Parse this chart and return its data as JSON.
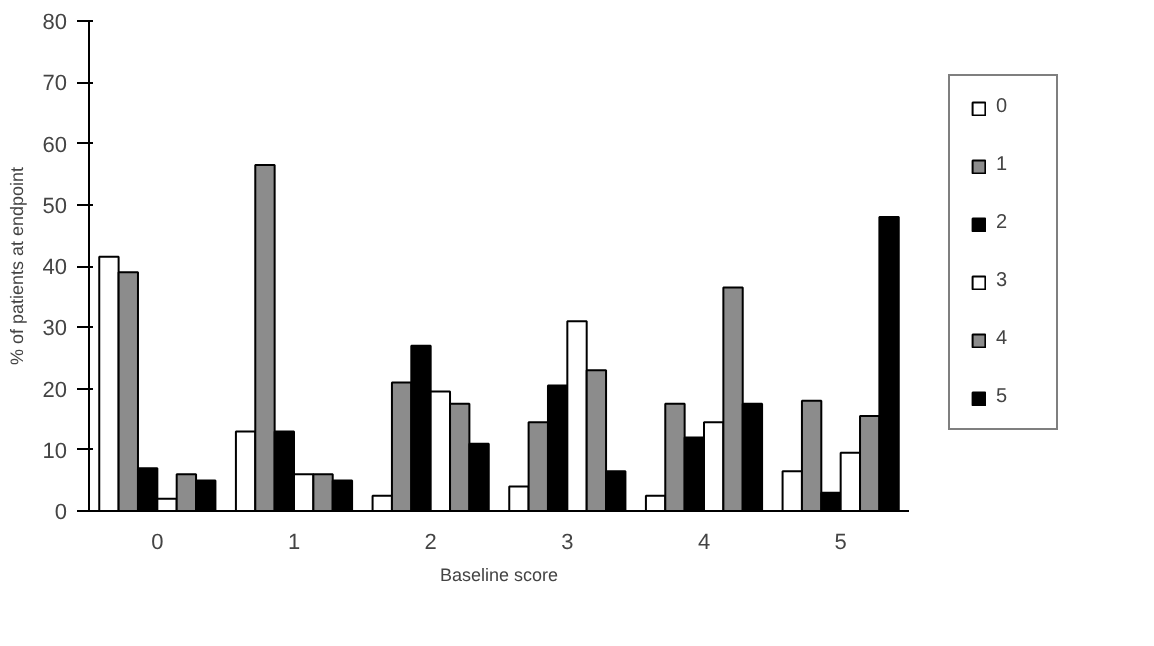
{
  "chart_data": {
    "type": "bar",
    "xlabel": "Baseline score",
    "ylabel": "% of patients at endpoint",
    "categories": [
      "0",
      "1",
      "2",
      "3",
      "4",
      "5"
    ],
    "series": [
      {
        "name": "0",
        "color": "#ffffff",
        "values": [
          41.5,
          13,
          2.5,
          4,
          2.5,
          6.5
        ]
      },
      {
        "name": "1",
        "color": "#8c8c8c",
        "values": [
          39,
          56.5,
          21,
          14.5,
          17.5,
          18
        ]
      },
      {
        "name": "2",
        "color": "#000000",
        "values": [
          7,
          13,
          27,
          20.5,
          12,
          3
        ]
      },
      {
        "name": "3",
        "color": "#ffffff",
        "values": [
          2,
          6,
          19.5,
          31,
          14.5,
          9.5
        ]
      },
      {
        "name": "4",
        "color": "#8c8c8c",
        "values": [
          6,
          6,
          17.5,
          23,
          36.5,
          15.5
        ]
      },
      {
        "name": "5",
        "color": "#000000",
        "values": [
          5,
          5,
          11,
          6.5,
          17.5,
          48
        ]
      }
    ],
    "ylim": [
      0,
      80
    ],
    "yticks": [
      0,
      10,
      20,
      30,
      40,
      50,
      60,
      70,
      80
    ],
    "legend": "right"
  }
}
